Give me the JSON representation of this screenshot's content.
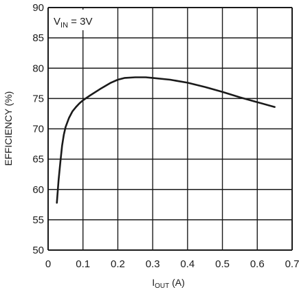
{
  "chart_data": {
    "type": "line",
    "xlabel": {
      "main": "I",
      "sub": "OUT",
      "unit": " (A)"
    },
    "ylabel": "EFFICIENCY (%)",
    "annotation": {
      "main": "V",
      "sub": "IN",
      "rest": " = 3V"
    },
    "xlim": [
      0,
      0.7
    ],
    "ylim": [
      50,
      90
    ],
    "x_ticks": [
      "0",
      "0.1",
      "0.2",
      "0.3",
      "0.4",
      "0.5",
      "0.6",
      "0.7"
    ],
    "y_ticks": [
      "50",
      "55",
      "60",
      "65",
      "70",
      "75",
      "80",
      "85",
      "90"
    ],
    "grid": true,
    "legend": "none",
    "line_color": "#1a1a1a",
    "series": [
      {
        "x": [
          0.025,
          0.03,
          0.035,
          0.04,
          0.045,
          0.05,
          0.06,
          0.07,
          0.08,
          0.09,
          0.1,
          0.12,
          0.15,
          0.18,
          0.2,
          0.22,
          0.25,
          0.28,
          0.3,
          0.35,
          0.4,
          0.45,
          0.5,
          0.55,
          0.6,
          0.65
        ],
        "y": [
          57.8,
          61.5,
          64.5,
          67.2,
          69.0,
          70.3,
          71.8,
          72.9,
          73.6,
          74.2,
          74.7,
          75.5,
          76.6,
          77.6,
          78.1,
          78.4,
          78.5,
          78.5,
          78.4,
          78.1,
          77.6,
          76.9,
          76.1,
          75.2,
          74.4,
          73.6
        ]
      }
    ]
  }
}
